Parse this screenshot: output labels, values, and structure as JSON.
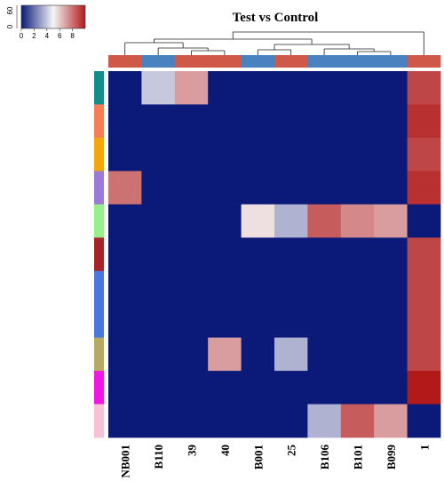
{
  "chart_data": {
    "type": "heatmap",
    "title": "Test vs Control",
    "columns": [
      "NB001",
      "B110",
      "39",
      "40",
      "B001",
      "25",
      "B106",
      "B101",
      "B099",
      "1"
    ],
    "row_count": 11,
    "values": [
      [
        0,
        4,
        7,
        0,
        0,
        0,
        0,
        0,
        0,
        9
      ],
      [
        0,
        0,
        0,
        0,
        0,
        0,
        0,
        0,
        0,
        9.5
      ],
      [
        0,
        0,
        0,
        0,
        0,
        0,
        0,
        0,
        0,
        9
      ],
      [
        8,
        0,
        0,
        0,
        0,
        0,
        0,
        0,
        0,
        9.5
      ],
      [
        0,
        0,
        0,
        0,
        5.5,
        3.5,
        8.5,
        7.5,
        7,
        0
      ],
      [
        0,
        0,
        0,
        0,
        0,
        0,
        0,
        0,
        0,
        9
      ],
      [
        0,
        0,
        0,
        0,
        0,
        0,
        0,
        0,
        0,
        9
      ],
      [
        0,
        0,
        0,
        0,
        0,
        0,
        0,
        0,
        0,
        9
      ],
      [
        0,
        0,
        0,
        7,
        0,
        3.5,
        0,
        0,
        0,
        9
      ],
      [
        0,
        0,
        0,
        0,
        0,
        0,
        0,
        0,
        0,
        10
      ],
      [
        0,
        0,
        0,
        0,
        0,
        0,
        3.5,
        8.5,
        7,
        0
      ]
    ],
    "row_annotation_colors": [
      "#138d8a",
      "#f47f56",
      "#f4a60a",
      "#9a7bd6",
      "#98ef8c",
      "#a8242a",
      "#4a78df",
      "#4a78df",
      "#b7ab64",
      "#f017e4",
      "#f6c2d4"
    ],
    "row_group_sizes": [
      1,
      1,
      1,
      1,
      1,
      1,
      2,
      0,
      1,
      1,
      1
    ],
    "column_annotation_colors": [
      "#cf5848",
      "#4a82c0",
      "#cf5848",
      "#cf5848",
      "#4a82c0",
      "#cf5848",
      "#4a82c0",
      "#4a82c0",
      "#4a82c0",
      "#cf5848"
    ],
    "color_key": {
      "title": "",
      "ticks": [
        0,
        2,
        4,
        6,
        8
      ],
      "range": [
        0,
        10
      ],
      "colors": [
        "#0b1a78",
        "#f5f5f7",
        "#b21a1a"
      ],
      "histogram_ticks": [
        "0",
        "60"
      ]
    },
    "dendrogram": true
  }
}
